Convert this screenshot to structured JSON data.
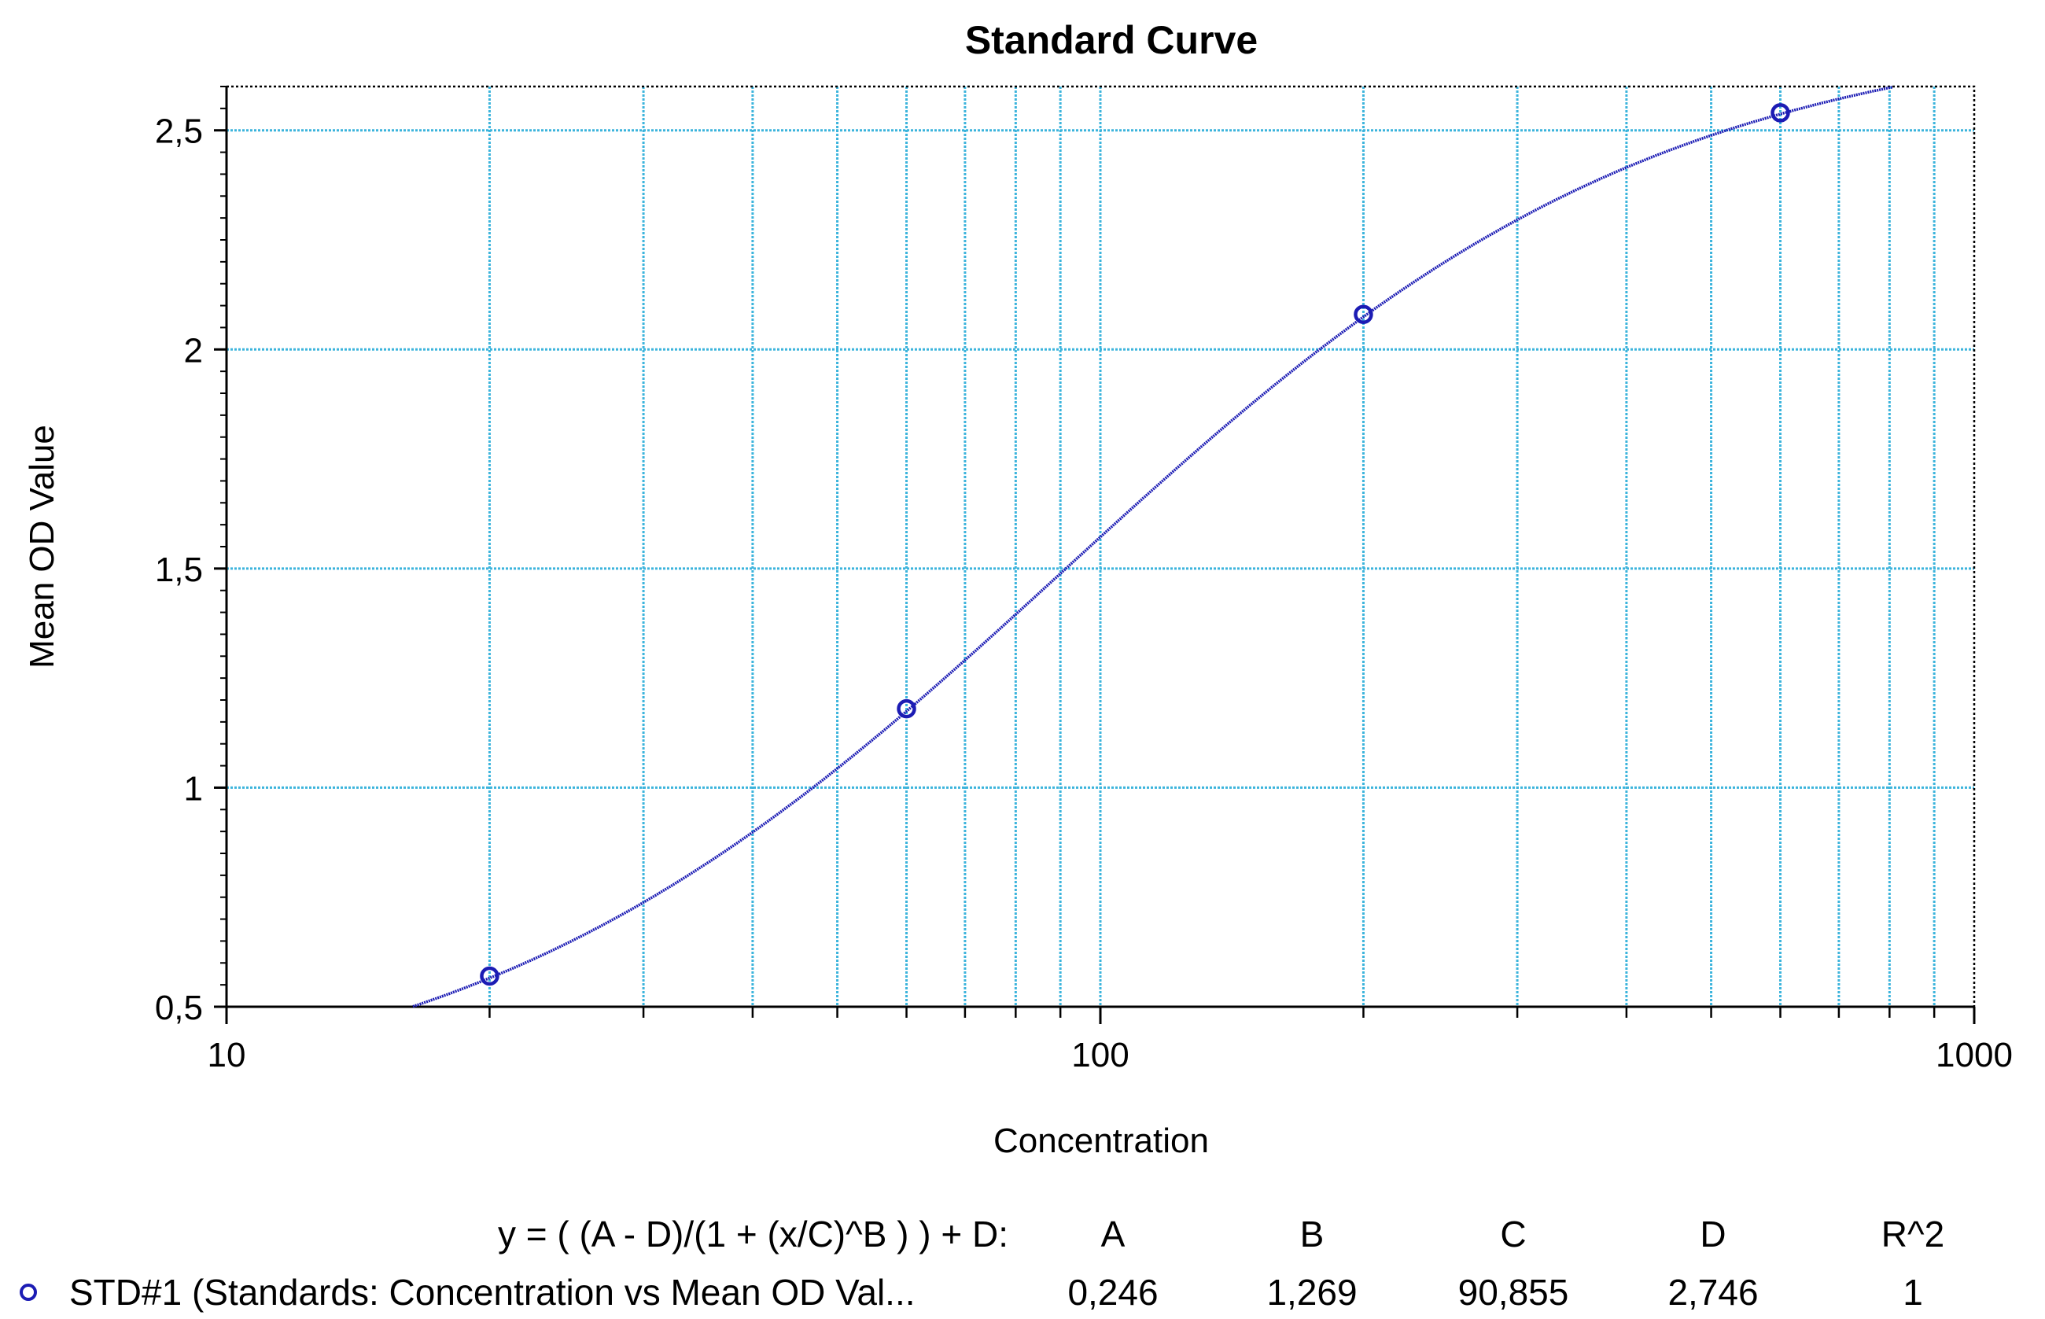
{
  "chart_data": {
    "type": "scatter",
    "title": "Standard Curve",
    "xlabel": "Concentration",
    "ylabel": "Mean OD Value",
    "x_scale": "log",
    "xlim": [
      10,
      1000
    ],
    "ylim": [
      0.5,
      2.6
    ],
    "x_ticks": [
      {
        "value": 10,
        "label": "10"
      },
      {
        "value": 100,
        "label": "100"
      },
      {
        "value": 1000,
        "label": "1000"
      }
    ],
    "y_ticks": [
      {
        "value": 0.5,
        "label": "0,5"
      },
      {
        "value": 1,
        "label": "1"
      },
      {
        "value": 1.5,
        "label": "1,5"
      },
      {
        "value": 2,
        "label": "2"
      },
      {
        "value": 2.5,
        "label": "2,5"
      }
    ],
    "grid": true,
    "colors": {
      "grid": "#3cb4dc",
      "series": "#1c1cb4"
    },
    "series": [
      {
        "name": "STD#1 (Standards: Concentration vs Mean OD Val...",
        "points": [
          {
            "x": 20,
            "y": 0.57
          },
          {
            "x": 60,
            "y": 1.18
          },
          {
            "x": 200,
            "y": 2.08
          },
          {
            "x": 600,
            "y": 2.54
          }
        ],
        "fit": {
          "model": "4PL",
          "A": 0.246,
          "B": 1.269,
          "C": 90.855,
          "D": 2.746
        }
      }
    ],
    "fit_table": {
      "equation": "y = ( (A - D)/(1 + (x/C)^B ) ) + D:",
      "headers": [
        "A",
        "B",
        "C",
        "D",
        "R^2"
      ],
      "row_label": "STD#1 (Standards: Concentration vs Mean OD Val...",
      "values": [
        "0,246",
        "1,269",
        "90,855",
        "2,746",
        "1"
      ]
    }
  }
}
